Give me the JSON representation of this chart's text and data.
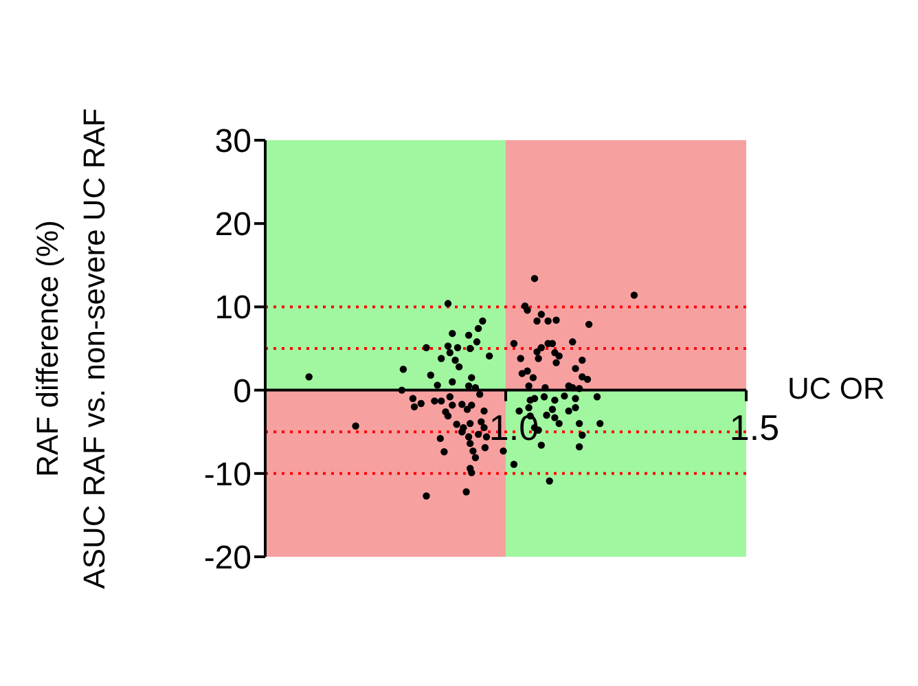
{
  "chart_data": {
    "type": "scatter",
    "xlabel": "UC OR",
    "ylabel": "RAF difference (%)\nASUC RAF vs. non-severe UC RAF",
    "xlim": [
      0.5,
      1.5
    ],
    "xticks": [
      {
        "value": 1,
        "label": "1.0"
      },
      {
        "value": 1.5,
        "label": "1.5"
      }
    ],
    "ylim": [
      -20,
      30
    ],
    "yticks": [
      -20,
      -10,
      0,
      10,
      20,
      30
    ],
    "grid": false,
    "legend": false,
    "marker": "circle",
    "bands": [
      {
        "axis": "x",
        "from": 0.5,
        "to": 1.0,
        "color": "#a0f7a0"
      },
      {
        "axis": "x",
        "from": 1.0,
        "to": 1.5,
        "color": "#f7a0a0"
      }
    ],
    "ref_lines": [
      {
        "axis": "y",
        "value": 10,
        "color": "#ff0000",
        "line_style": "dotted"
      },
      {
        "axis": "y",
        "value": 5,
        "color": "#ff0000",
        "line_style": "dotted"
      },
      {
        "axis": "y",
        "value": -5,
        "color": "#ff0000",
        "line_style": "dotted"
      },
      {
        "axis": "y",
        "value": -10,
        "color": "#ff0000",
        "line_style": "dotted"
      }
    ],
    "series": [
      {
        "color": "#000000",
        "x": [
          0.591,
          0.688,
          0.88,
          0.835,
          0.787,
          0.784,
          0.844,
          0.866,
          0.889,
          0.88,
          0.9,
          0.884,
          0.895,
          0.903,
          0.923,
          0.94,
          0.926,
          0.952,
          0.943,
          0.966,
          0.929,
          0.889,
          0.858,
          0.923,
          0.937,
          0.946,
          0.807,
          0.824,
          0.81,
          0.852,
          0.866,
          0.884,
          0.889,
          0.875,
          0.909,
          0.92,
          0.929,
          0.955,
          0.88,
          0.898,
          0.912,
          0.926,
          0.949,
          0.955,
          0.943,
          0.96,
          0.957,
          0.909,
          0.923,
          0.864,
          0.926,
          0.932,
          0.872,
          0.937,
          0.926,
          0.929,
          0.918,
          0.835,
          0.995,
          1.06,
          1.267,
          1.04,
          1.045,
          1.074,
          1.065,
          1.088,
          1.105,
          1.173,
          1.017,
          1.088,
          1.074,
          1.097,
          1.139,
          1.065,
          1.102,
          1.111,
          1.031,
          1.068,
          1.105,
          1.159,
          1.145,
          1.034,
          1.045,
          1.057,
          1.159,
          1.17,
          1.048,
          1.082,
          1.131,
          1.139,
          1.153,
          1.051,
          1.06,
          1.08,
          1.102,
          1.122,
          1.145,
          1.19,
          1.028,
          1.048,
          1.051,
          1.085,
          1.097,
          1.102,
          1.111,
          1.131,
          1.145,
          1.153,
          1.196,
          1.06,
          1.068,
          1.159,
          1.074,
          1.153,
          1.017,
          1.091
        ],
        "values": [
          1.6,
          -4.3,
          10.4,
          5.1,
          2.5,
          0,
          1.8,
          3.8,
          6.8,
          5.3,
          5.1,
          4.5,
          3.6,
          2.8,
          6.6,
          5.8,
          5.0,
          8.3,
          7.4,
          4.1,
          1.5,
          1.0,
          0.6,
          0.5,
          0.3,
          -0.5,
          -1.0,
          -1.6,
          -2.0,
          -1.3,
          -1.3,
          -0.8,
          -1.8,
          -2.6,
          -1.7,
          -2.3,
          -1.8,
          -2.5,
          -3.1,
          -4.1,
          -4.5,
          -4.0,
          -3.8,
          -4.5,
          -5.3,
          -5.6,
          -6.9,
          -5.0,
          -5.6,
          -5.8,
          -6.4,
          -7.3,
          -7.4,
          -8.1,
          -9.4,
          -9.9,
          -12.2,
          -12.7,
          -7.3,
          13.4,
          11.4,
          10.1,
          9.6,
          9.1,
          8.3,
          8.3,
          8.4,
          7.9,
          5.6,
          5.6,
          5.1,
          5.6,
          5.8,
          4.6,
          4.5,
          4.1,
          3.8,
          3.8,
          3.3,
          3.6,
          2.6,
          2.0,
          2.3,
          1.5,
          1.6,
          1.3,
          0.5,
          0.3,
          0.5,
          0.3,
          0.2,
          -1.2,
          -1.0,
          -0.8,
          -1.2,
          -0.7,
          -1.0,
          -0.8,
          -2.5,
          -2.1,
          -3.1,
          -3.0,
          -2.3,
          -3.3,
          -4.0,
          -2.5,
          -2.1,
          -4.0,
          -4.0,
          -4.5,
          -4.8,
          -5.4,
          -6.6,
          -6.8,
          -8.9,
          -10.9
        ]
      }
    ]
  }
}
